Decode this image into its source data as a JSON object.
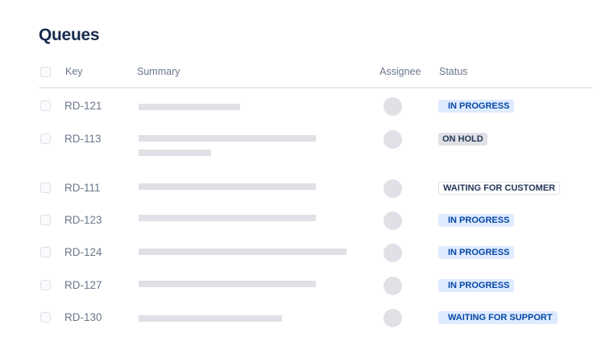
{
  "title": "Queues",
  "columns": {
    "key": "Key",
    "summary": "Summary",
    "assignee": "Assignee",
    "status": "Status"
  },
  "rows": [
    {
      "key": "RD-121",
      "status": "IN PROGRESS",
      "variant": "blue"
    },
    {
      "key": "RD-113",
      "status": "ON HOLD",
      "variant": "grey"
    },
    {
      "key": "RD-111",
      "status": "WAITING FOR CUSTOMER",
      "variant": "white"
    },
    {
      "key": "RD-123",
      "status": "IN PROGRESS",
      "variant": "blue"
    },
    {
      "key": "RD-124",
      "status": "IN PROGRESS",
      "variant": "blue"
    },
    {
      "key": "RD-127",
      "status": "IN PROGRESS",
      "variant": "blue"
    },
    {
      "key": "RD-130",
      "status": "WAITING FOR SUPPORT",
      "variant": "blue"
    }
  ],
  "colors": {
    "blue_bg": "#deebff",
    "blue_text": "#0747a6",
    "grey_bg": "#dfe1e6",
    "title": "#172b4d"
  }
}
